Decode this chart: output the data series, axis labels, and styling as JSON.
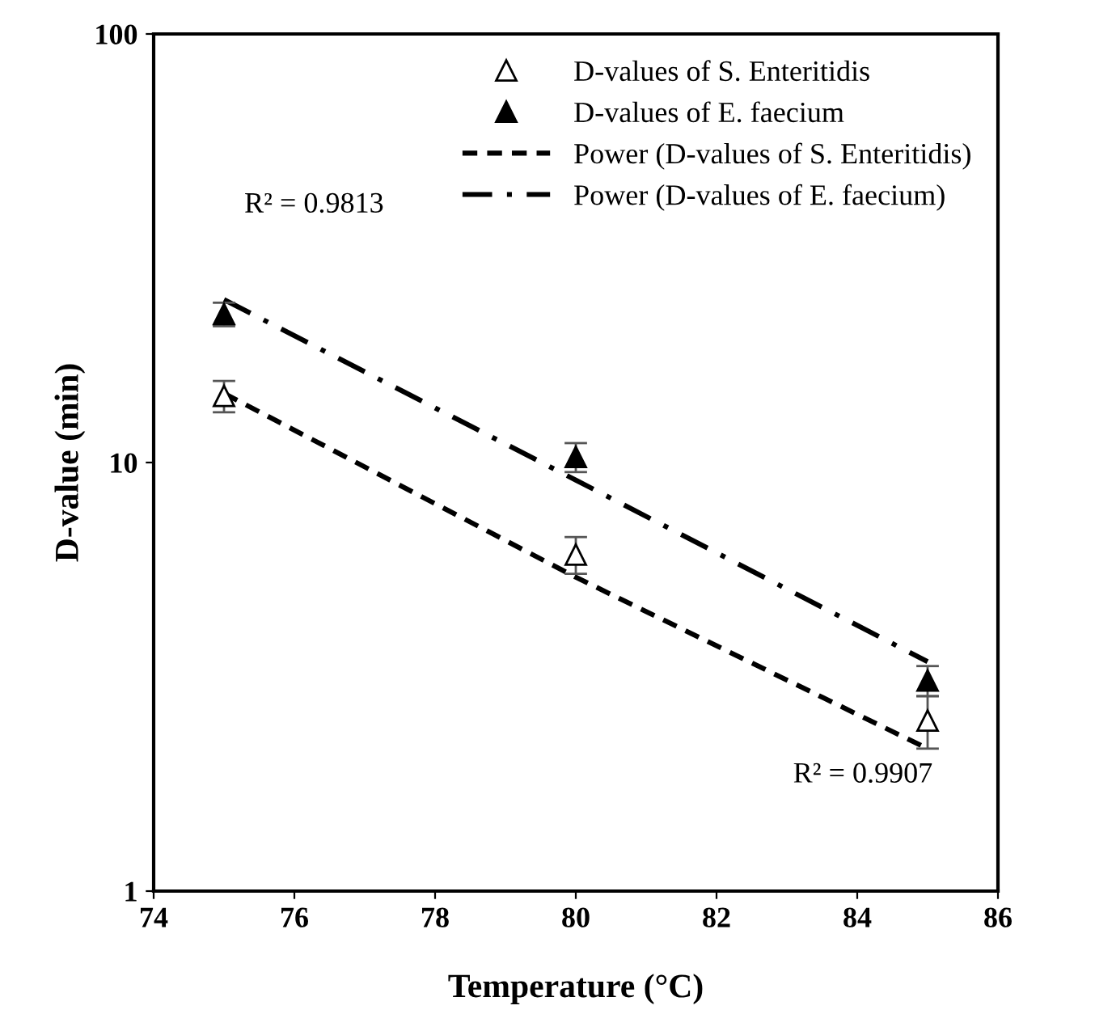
{
  "chart_data": {
    "type": "scatter",
    "xlabel": "Temperature (°C)",
    "ylabel": "D-value (min)",
    "xlim": [
      74,
      86
    ],
    "xticks": [
      74,
      76,
      78,
      80,
      82,
      84,
      86
    ],
    "ylim": [
      1,
      100
    ],
    "yticks": [
      1,
      10,
      100
    ],
    "log": "y",
    "grid": false,
    "legend": "top right",
    "series": [
      {
        "name": "D-values of S. Enteritidis",
        "marker": "triangle",
        "color": "#ffffff",
        "x": [
          75,
          80,
          85
        ],
        "values": [
          14.3,
          6.1,
          2.5
        ],
        "errors": [
          1.2,
          0.6,
          0.35
        ]
      },
      {
        "name": "D-values of E. faecium",
        "marker": "triangle",
        "color": "#000000",
        "x": [
          75,
          80,
          85
        ],
        "values": [
          22.2,
          10.3,
          3.1
        ],
        "errors": [
          1.4,
          0.8,
          0.25
        ]
      },
      {
        "name": "Power (D-values of S. Enteritidis)",
        "type": "line",
        "line_style": "dashed",
        "color": "#000000",
        "x": [
          75,
          80,
          85
        ],
        "values": [
          14.5,
          5.4,
          2.15
        ]
      },
      {
        "name": "Power (D-values of E. faecium)",
        "type": "line",
        "line_style": "dashdot",
        "color": "#000000",
        "x": [
          75,
          80,
          85
        ],
        "values": [
          24,
          9.1,
          3.43
        ]
      }
    ],
    "annotations": [
      "R² = 0.9813",
      "R² = 0.9907"
    ]
  }
}
